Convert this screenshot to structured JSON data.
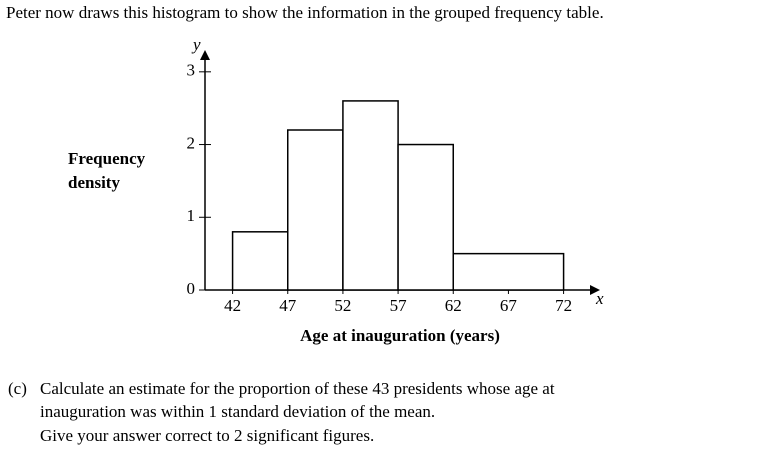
{
  "intro": "Peter now draws this histogram to show the information in the grouped frequency table.",
  "chart_data": {
    "type": "histogram",
    "ylabel": [
      "Frequency",
      "density"
    ],
    "xlabel": "Age at inauguration (years)",
    "x_axis_letter": "x",
    "y_axis_letter": "y",
    "bins": [
      42,
      47,
      52,
      57,
      62,
      72
    ],
    "values": [
      0.8,
      2.2,
      2.6,
      2.0,
      0.5
    ],
    "color": "#ffffff",
    "xlim": [
      39.5,
      75.3
    ],
    "ylim": [
      0,
      3.3
    ],
    "xticks": [
      42,
      47,
      52,
      57,
      62,
      67,
      72
    ],
    "yticks": [
      0,
      1,
      2,
      3
    ]
  },
  "question": {
    "label": "(c)",
    "lines": [
      "Calculate an estimate for the proportion of these 43 presidents whose age at",
      "inauguration was within 1 standard deviation of the mean.",
      "Give your answer correct to 2 significant figures."
    ]
  }
}
